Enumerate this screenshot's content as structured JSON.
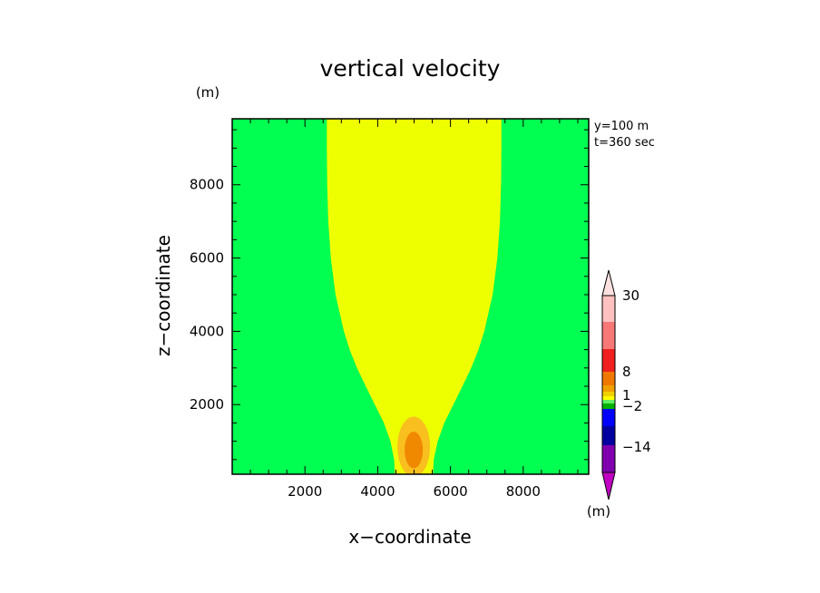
{
  "chart_data": {
    "type": "heatmap",
    "title": "vertical velocity",
    "xlabel": "x−coordinate",
    "ylabel": "z−coordinate",
    "x_unit": "(m)",
    "y_unit": "(m)",
    "xlim": [
      0,
      9800
    ],
    "ylim": [
      100,
      9800
    ],
    "x_ticks": [
      "2000",
      "4000",
      "6000",
      "8000"
    ],
    "x_tick_values": [
      2000,
      4000,
      6000,
      8000
    ],
    "y_ticks": [
      "2000",
      "4000",
      "6000",
      "8000"
    ],
    "y_tick_values": [
      2000,
      4000,
      6000,
      8000
    ],
    "annotations": [
      "y=100  m",
      "t=360  sec"
    ],
    "plume_boundary": {
      "z": [
        100,
        500,
        1000,
        1500,
        2000,
        2500,
        3000,
        3500,
        4000,
        5000,
        6000,
        7000,
        8000,
        9000,
        9800
      ],
      "x_left": [
        4470,
        4450,
        4350,
        4170,
        3920,
        3670,
        3430,
        3230,
        3070,
        2840,
        2710,
        2640,
        2610,
        2600,
        2600
      ],
      "x_right": [
        5520,
        5540,
        5650,
        5830,
        6080,
        6330,
        6570,
        6770,
        6930,
        7160,
        7290,
        7360,
        7390,
        7400,
        7400
      ]
    },
    "cores": [
      {
        "x": 4990,
        "z": 850,
        "rx": 450,
        "rz": 820,
        "level": "1-4"
      },
      {
        "x": 4990,
        "z": 760,
        "rx": 250,
        "rz": 500,
        "level": "4-8"
      }
    ],
    "colorbar": {
      "unit": "(m)",
      "labels": [
        "30",
        "8",
        "1",
        "−2",
        "−14"
      ],
      "label_values": [
        30,
        8,
        1,
        -2,
        -14
      ],
      "colors_top_to_bottom": [
        "#ffc0c0",
        "#f87878",
        "#f02020",
        "#f07800",
        "#f0a000",
        "#f0d000",
        "#ffff00",
        "#60f060",
        "#00b000",
        "#0000ff",
        "#0000a0",
        "#8000b0",
        "#c000c0"
      ],
      "over_color": "#ffe0e0",
      "under_color": "#c000c0"
    },
    "colors": {
      "background": "#00ff50",
      "plume": "#eeff00",
      "core_outer": "#f9bf1e",
      "core_inner": "#f08800"
    }
  }
}
